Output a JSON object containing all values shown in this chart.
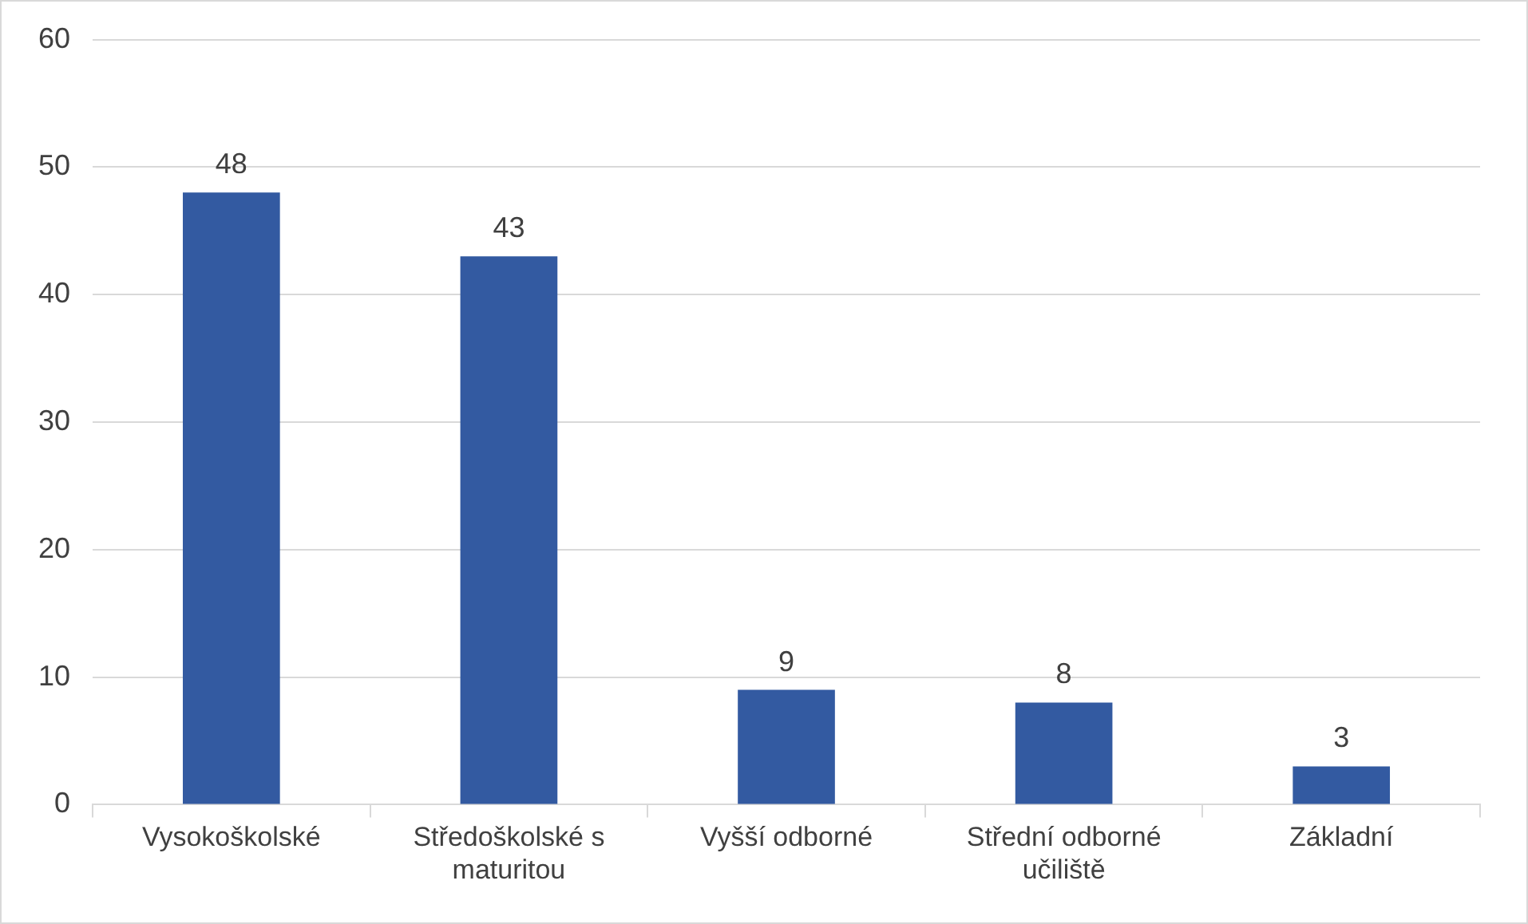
{
  "chart_data": {
    "type": "bar",
    "categories": [
      "Vysokoškolské",
      "Středoškolské s maturitou",
      "Vyšší odborné",
      "Střední odborné učiliště",
      "Základní"
    ],
    "values": [
      48,
      43,
      9,
      8,
      3
    ],
    "color": "#335aa1",
    "ylim": [
      0,
      60
    ],
    "yticks": [
      0,
      10,
      20,
      30,
      40,
      50,
      60
    ],
    "grid": "y",
    "data_labels": true,
    "legend": false
  }
}
